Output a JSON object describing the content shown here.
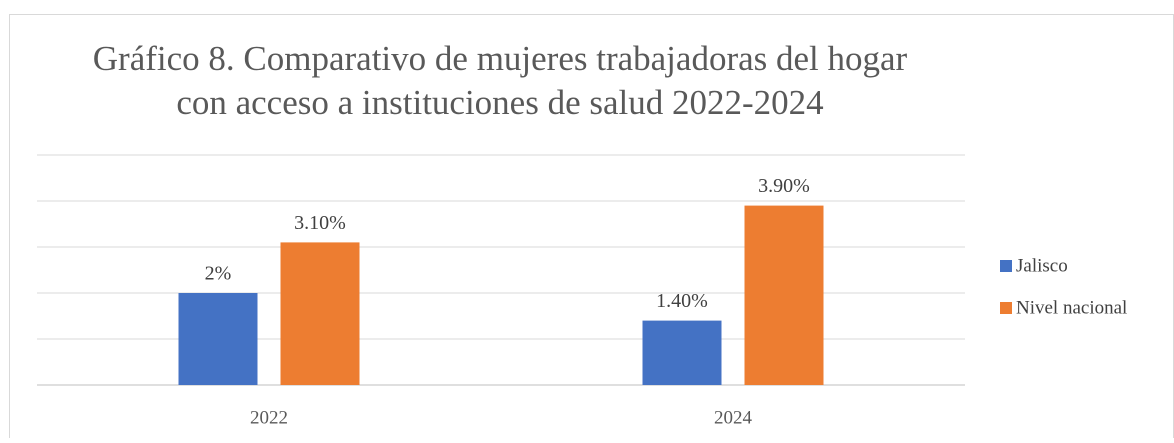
{
  "chart_data": {
    "type": "bar",
    "title": [
      "Gráfico 8. Comparativo de mujeres trabajadoras del hogar",
      "con acceso a instituciones de salud 2022-2024"
    ],
    "categories": [
      "2022",
      "2024"
    ],
    "series": [
      {
        "name": "Jalisco",
        "color": "#4472c4",
        "values": [
          2,
          1.4
        ],
        "value_labels": [
          "2%",
          "1.40%"
        ]
      },
      {
        "name": "Nivel nacional",
        "color": "#ed7d31",
        "values": [
          3.1,
          3.9
        ],
        "value_labels": [
          "3.10%",
          "3.90%"
        ]
      }
    ],
    "ylim": [
      0,
      5
    ],
    "yticks": [
      0,
      1,
      2,
      3,
      4,
      5
    ],
    "grid": true,
    "legend": "right"
  }
}
